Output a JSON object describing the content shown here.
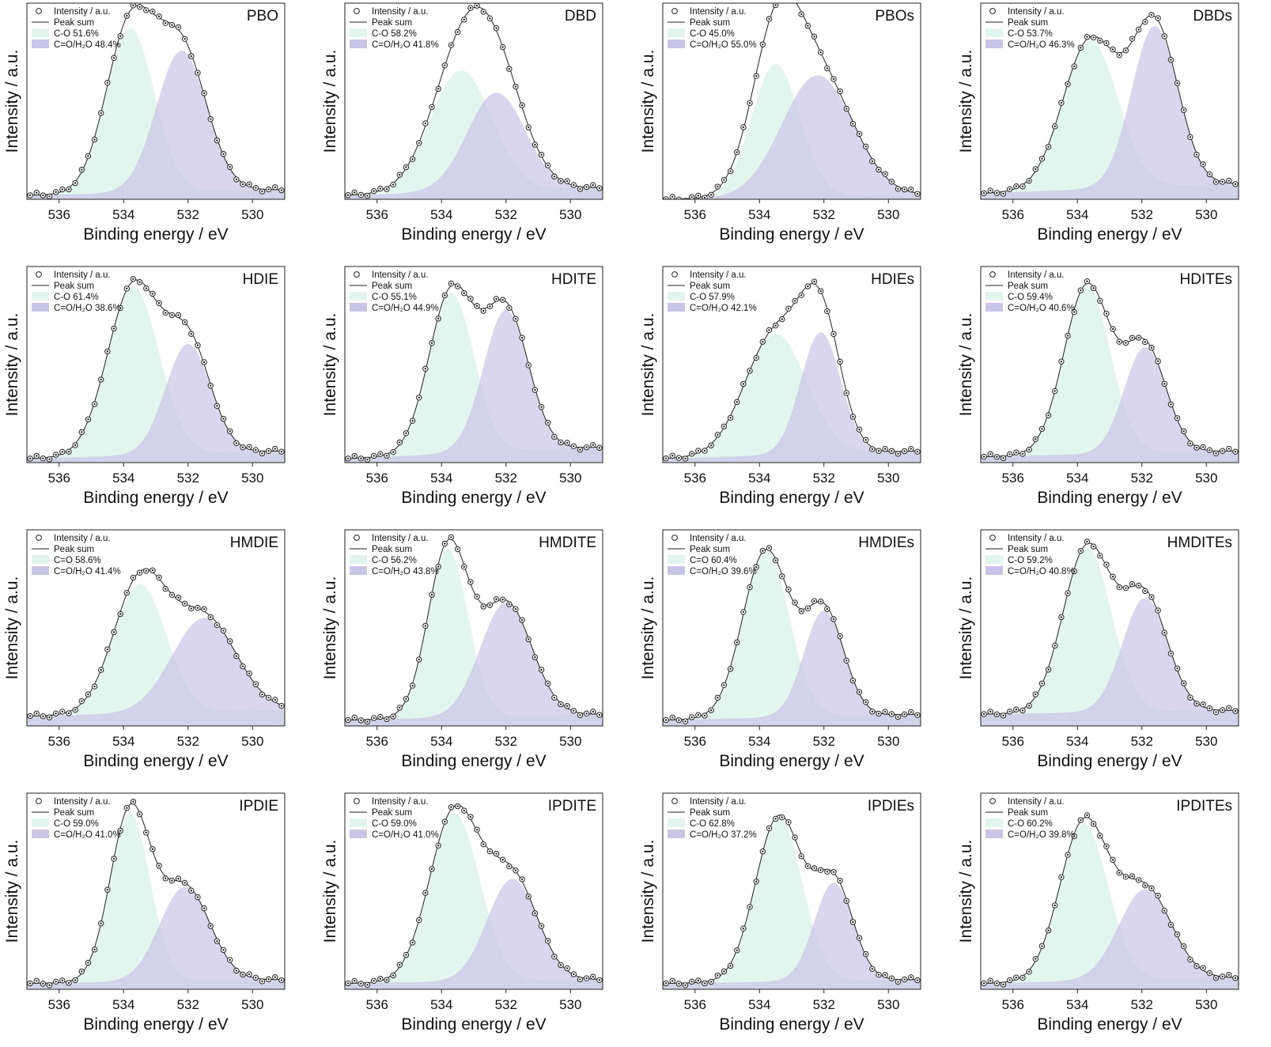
{
  "colors": {
    "component1": "#e2f4ee",
    "component2": "#c9c5e6",
    "overlap": "#bcc3e0",
    "line": "#222222",
    "marker": "#222222"
  },
  "chart_data": [
    {
      "type": "line",
      "title": "PBO",
      "xlabel": "Binding energy / eV",
      "ylabel": "Intensity / a.u.",
      "xlim": [
        537,
        529
      ],
      "x_reversed": true,
      "x_ticks": [
        536,
        534,
        532,
        530
      ],
      "legend": [
        "Intensity / a.u.",
        "Peak sum",
        "C-O 51.6%",
        "C=O/H₂O 48.4%"
      ],
      "series": [
        {
          "name": "C-O",
          "center": 533.8,
          "width": 0.75,
          "amplitude": 0.84
        },
        {
          "name": "C=O/H₂O",
          "center": 532.2,
          "width": 0.78,
          "amplitude": 0.72
        }
      ],
      "baseline": [
        0.02,
        0.05
      ]
    },
    {
      "type": "line",
      "title": "DBD",
      "xlabel": "Binding energy / eV",
      "ylabel": "Intensity / a.u.",
      "xlim": [
        537,
        529
      ],
      "x_reversed": true,
      "x_ticks": [
        536,
        534,
        532,
        530
      ],
      "legend": [
        "Intensity / a.u.",
        "Peak sum",
        "C-O 58.2%",
        "C=O/H₂O 41.8%"
      ],
      "series": [
        {
          "name": "C-O",
          "center": 533.4,
          "width": 0.95,
          "amplitude": 0.62
        },
        {
          "name": "C=O/H₂O",
          "center": 532.3,
          "width": 0.9,
          "amplitude": 0.5
        }
      ],
      "baseline": [
        0.02,
        0.06
      ]
    },
    {
      "type": "line",
      "title": "PBOs",
      "xlabel": "Binding energy / eV",
      "ylabel": "Intensity / a.u.",
      "xlim": [
        537,
        529
      ],
      "x_reversed": true,
      "x_ticks": [
        536,
        534,
        532,
        530
      ],
      "legend": [
        "Intensity / a.u.",
        "Peak sum",
        "C-O 45.0%",
        "C=O/H₂O 55.0%"
      ],
      "series": [
        {
          "name": "C-O",
          "center": 533.5,
          "width": 0.75,
          "amplitude": 0.68
        },
        {
          "name": "C=O/H₂O",
          "center": 532.2,
          "width": 1.1,
          "amplitude": 0.62
        }
      ],
      "baseline": [
        0.0,
        0.02
      ]
    },
    {
      "type": "line",
      "title": "DBDs",
      "xlabel": "Binding energy / eV",
      "ylabel": "Intensity / a.u.",
      "xlim": [
        537,
        529
      ],
      "x_reversed": true,
      "x_ticks": [
        536,
        534,
        532,
        530
      ],
      "legend": [
        "Intensity / a.u.",
        "Peak sum",
        "C-O 53.7%",
        "C=O/H₂O 46.3%"
      ],
      "series": [
        {
          "name": "C-O",
          "center": 533.6,
          "width": 0.85,
          "amplitude": 0.76
        },
        {
          "name": "C=O/H₂O",
          "center": 531.6,
          "width": 0.72,
          "amplitude": 0.82
        }
      ],
      "baseline": [
        0.03,
        0.08
      ]
    },
    {
      "type": "line",
      "title": "HDIE",
      "xlabel": "Binding energy / eV",
      "ylabel": "Intensity / a.u.",
      "xlim": [
        537,
        529
      ],
      "x_reversed": true,
      "x_ticks": [
        536,
        534,
        532,
        530
      ],
      "legend": [
        "Intensity / a.u.",
        "Peak sum",
        "C-O 61.4%",
        "C=O/H₂O 38.6%"
      ],
      "series": [
        {
          "name": "C-O",
          "center": 533.7,
          "width": 0.8,
          "amplitude": 0.86
        },
        {
          "name": "C=O/H₂O",
          "center": 532.0,
          "width": 0.7,
          "amplitude": 0.56
        }
      ],
      "baseline": [
        0.02,
        0.06
      ]
    },
    {
      "type": "line",
      "title": "HDITE",
      "xlabel": "Binding energy / eV",
      "ylabel": "Intensity / a.u.",
      "xlim": [
        537,
        529
      ],
      "x_reversed": true,
      "x_ticks": [
        536,
        534,
        532,
        530
      ],
      "legend": [
        "Intensity / a.u.",
        "Peak sum",
        "C-O 55.1%",
        "C=O/H₂O 44.9%"
      ],
      "series": [
        {
          "name": "C-O",
          "center": 533.7,
          "width": 0.7,
          "amplitude": 0.82
        },
        {
          "name": "C=O/H₂O",
          "center": 532.0,
          "width": 0.7,
          "amplitude": 0.72
        }
      ],
      "baseline": [
        0.02,
        0.08
      ]
    },
    {
      "type": "line",
      "title": "HDIEs",
      "xlabel": "Binding energy / eV",
      "ylabel": "Intensity / a.u.",
      "xlim": [
        537,
        529
      ],
      "x_reversed": true,
      "x_ticks": [
        536,
        534,
        532,
        530
      ],
      "legend": [
        "Intensity / a.u.",
        "Peak sum",
        "C-O 57.9%",
        "C=O/H₂O 42.1%"
      ],
      "series": [
        {
          "name": "C-O",
          "center": 533.5,
          "width": 0.95,
          "amplitude": 0.62
        },
        {
          "name": "C=O/H₂O",
          "center": 532.1,
          "width": 0.62,
          "amplitude": 0.62
        }
      ],
      "baseline": [
        0.02,
        0.06
      ]
    },
    {
      "type": "line",
      "title": "HDITEs",
      "xlabel": "Binding energy / eV",
      "ylabel": "Intensity / a.u.",
      "xlim": [
        537,
        529
      ],
      "x_reversed": true,
      "x_ticks": [
        536,
        534,
        532,
        530
      ],
      "legend": [
        "Intensity / a.u.",
        "Peak sum",
        "C-O 59.4%",
        "C=O/H₂O 40.6%"
      ],
      "series": [
        {
          "name": "C-O",
          "center": 533.7,
          "width": 0.72,
          "amplitude": 0.86
        },
        {
          "name": "C=O/H₂O",
          "center": 531.9,
          "width": 0.65,
          "amplitude": 0.54
        }
      ],
      "baseline": [
        0.03,
        0.06
      ]
    },
    {
      "type": "line",
      "title": "HMDIE",
      "xlabel": "Binding energy / eV",
      "ylabel": "Intensity / a.u.",
      "xlim": [
        537,
        529
      ],
      "x_reversed": true,
      "x_ticks": [
        536,
        534,
        532,
        530
      ],
      "legend": [
        "Intensity / a.u.",
        "Peak sum",
        "C=O 58.6%",
        "C=O/H₂O 41.4%"
      ],
      "series": [
        {
          "name": "C=O",
          "center": 533.5,
          "width": 0.82,
          "amplitude": 0.66
        },
        {
          "name": "C=O/H₂O",
          "center": 531.5,
          "width": 1.0,
          "amplitude": 0.48
        }
      ],
      "baseline": [
        0.05,
        0.08
      ]
    },
    {
      "type": "line",
      "title": "HMDITE",
      "xlabel": "Binding energy / eV",
      "ylabel": "Intensity / a.u.",
      "xlim": [
        537,
        529
      ],
      "x_reversed": true,
      "x_ticks": [
        536,
        534,
        532,
        530
      ],
      "legend": [
        "Intensity / a.u.",
        "Peak sum",
        "C-O 56.2%",
        "C=O/H₂O 43.8%"
      ],
      "series": [
        {
          "name": "C-O",
          "center": 533.8,
          "width": 0.62,
          "amplitude": 0.86
        },
        {
          "name": "C=O/H₂O",
          "center": 532.0,
          "width": 0.8,
          "amplitude": 0.58
        }
      ],
      "baseline": [
        0.03,
        0.06
      ]
    },
    {
      "type": "line",
      "title": "HMDIEs",
      "xlabel": "Binding energy / eV",
      "ylabel": "Intensity / a.u.",
      "xlim": [
        537,
        529
      ],
      "x_reversed": true,
      "x_ticks": [
        536,
        534,
        532,
        530
      ],
      "legend": [
        "Intensity / a.u.",
        "Peak sum",
        "C=O 60.4%",
        "C=O/H₂O 39.6%"
      ],
      "series": [
        {
          "name": "C=O",
          "center": 533.8,
          "width": 0.72,
          "amplitude": 0.85
        },
        {
          "name": "C=O/H₂O",
          "center": 532.0,
          "width": 0.62,
          "amplitude": 0.54
        }
      ],
      "baseline": [
        0.03,
        0.06
      ]
    },
    {
      "type": "line",
      "title": "HMDITEs",
      "xlabel": "Binding energy / eV",
      "ylabel": "Intensity / a.u.",
      "xlim": [
        537,
        529
      ],
      "x_reversed": true,
      "x_ticks": [
        536,
        534,
        532,
        530
      ],
      "legend": [
        "Intensity / a.u.",
        "Peak sum",
        "C-O 59.2%",
        "C=O/H₂O 40.8%"
      ],
      "series": [
        {
          "name": "C-O",
          "center": 533.7,
          "width": 0.75,
          "amplitude": 0.84
        },
        {
          "name": "C=O/H₂O",
          "center": 531.9,
          "width": 0.7,
          "amplitude": 0.58
        }
      ],
      "baseline": [
        0.06,
        0.08
      ]
    },
    {
      "type": "line",
      "title": "IPDIE",
      "xlabel": "Binding energy / eV",
      "ylabel": "Intensity / a.u.",
      "xlim": [
        537,
        529
      ],
      "x_reversed": true,
      "x_ticks": [
        536,
        534,
        532,
        530
      ],
      "legend": [
        "Intensity / a.u.",
        "Peak sum",
        "C-O 59.0%",
        "C=O/H₂O 41.0%"
      ],
      "series": [
        {
          "name": "C-O",
          "center": 533.8,
          "width": 0.62,
          "amplitude": 0.86
        },
        {
          "name": "C=O/H₂O",
          "center": 532.1,
          "width": 0.78,
          "amplitude": 0.48
        }
      ],
      "baseline": [
        0.03,
        0.05
      ]
    },
    {
      "type": "line",
      "title": "IPDITE",
      "xlabel": "Binding energy / eV",
      "ylabel": "Intensity / a.u.",
      "xlim": [
        537,
        529
      ],
      "x_reversed": true,
      "x_ticks": [
        536,
        534,
        532,
        530
      ],
      "legend": [
        "Intensity / a.u.",
        "Peak sum",
        "C-O 59.0%",
        "C=O/H₂O 41.0%"
      ],
      "series": [
        {
          "name": "C-O",
          "center": 533.6,
          "width": 0.78,
          "amplitude": 0.86
        },
        {
          "name": "C=O/H₂O",
          "center": 531.8,
          "width": 0.78,
          "amplitude": 0.52
        }
      ],
      "baseline": [
        0.03,
        0.05
      ]
    },
    {
      "type": "line",
      "title": "IPDIEs",
      "xlabel": "Binding energy / eV",
      "ylabel": "Intensity / a.u.",
      "xlim": [
        537,
        529
      ],
      "x_reversed": true,
      "x_ticks": [
        536,
        534,
        532,
        530
      ],
      "legend": [
        "Intensity / a.u.",
        "Peak sum",
        "C-O 62.8%",
        "C=O/H₂O 37.2%"
      ],
      "series": [
        {
          "name": "C-O",
          "center": 533.4,
          "width": 0.72,
          "amplitude": 0.84
        },
        {
          "name": "C=O/H₂O",
          "center": 531.7,
          "width": 0.6,
          "amplitude": 0.5
        }
      ],
      "baseline": [
        0.03,
        0.05
      ]
    },
    {
      "type": "line",
      "title": "IPDITEs",
      "xlabel": "Binding energy / eV",
      "ylabel": "Intensity / a.u.",
      "xlim": [
        537,
        529
      ],
      "x_reversed": true,
      "x_ticks": [
        536,
        534,
        532,
        530
      ],
      "legend": [
        "Intensity / a.u.",
        "Peak sum",
        "C-O 60.2%",
        "C=O/H₂O 39.8%"
      ],
      "series": [
        {
          "name": "C-O",
          "center": 533.8,
          "width": 0.75,
          "amplitude": 0.8
        },
        {
          "name": "C=O/H₂O",
          "center": 531.9,
          "width": 0.82,
          "amplitude": 0.46
        }
      ],
      "baseline": [
        0.03,
        0.06
      ]
    }
  ]
}
